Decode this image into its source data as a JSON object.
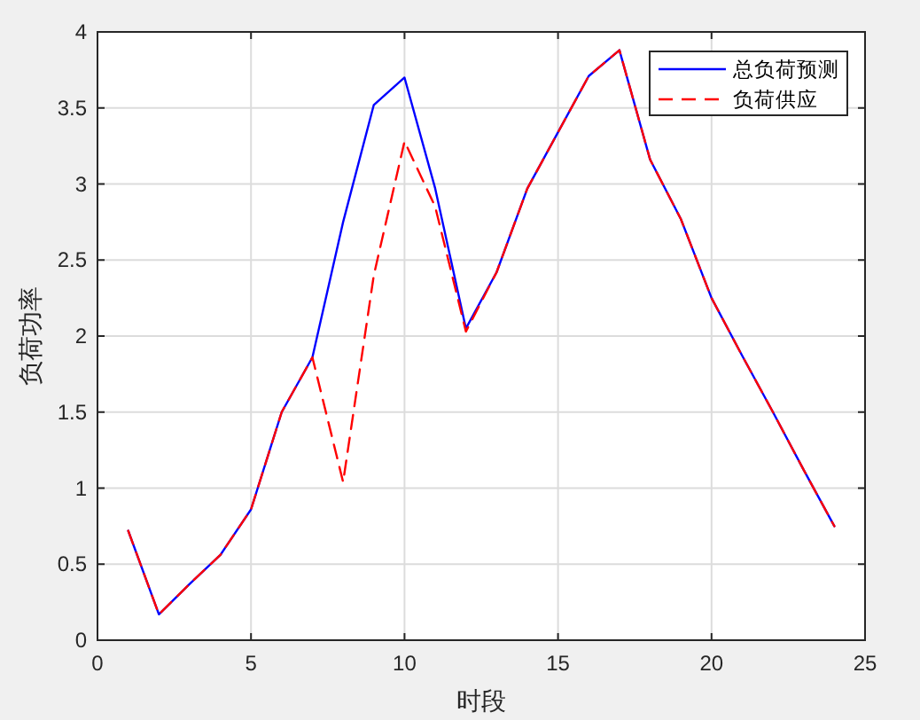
{
  "chart_data": {
    "type": "line",
    "xlabel": "时段",
    "ylabel": "负荷功率",
    "x": [
      1,
      2,
      3,
      4,
      5,
      6,
      7,
      8,
      9,
      10,
      11,
      12,
      13,
      14,
      15,
      16,
      17,
      18,
      19,
      20,
      21,
      22,
      23,
      24
    ],
    "series": [
      {
        "name": "总负荷预测",
        "color": "#0000ff",
        "line_style": "solid",
        "values": [
          0.72,
          0.17,
          0.37,
          0.56,
          0.86,
          1.5,
          1.86,
          2.75,
          3.52,
          3.7,
          2.97,
          2.05,
          2.42,
          2.97,
          3.34,
          3.71,
          3.88,
          3.16,
          2.77,
          2.25,
          1.87,
          1.5,
          1.12,
          0.75
        ]
      },
      {
        "name": "负荷供应",
        "color": "#ff0000",
        "line_style": "dashed",
        "values": [
          0.72,
          0.17,
          0.37,
          0.56,
          0.86,
          1.5,
          1.86,
          1.04,
          2.4,
          3.28,
          2.85,
          2.03,
          2.42,
          2.97,
          3.34,
          3.71,
          3.88,
          3.16,
          2.77,
          2.25,
          1.87,
          1.5,
          1.12,
          0.75
        ]
      }
    ],
    "xlim": [
      0,
      25
    ],
    "ylim": [
      0,
      4
    ],
    "xticks": [
      0,
      5,
      10,
      15,
      20,
      25
    ],
    "yticks": [
      0,
      0.5,
      1,
      1.5,
      2,
      2.5,
      3,
      3.5,
      4
    ],
    "grid": true,
    "legend": "top right"
  }
}
